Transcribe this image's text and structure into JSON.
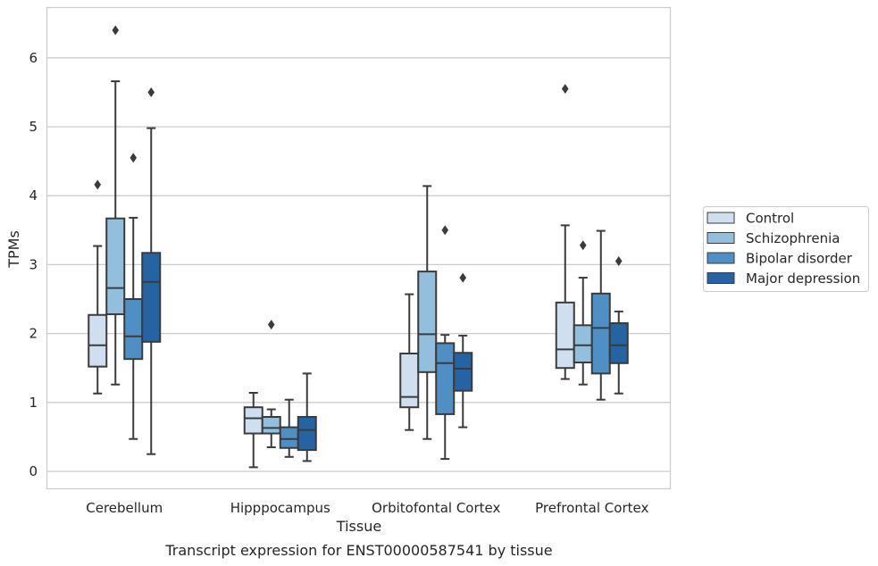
{
  "chart_data": {
    "type": "box",
    "title": "Transcript expression for ENST00000587541 by tissue",
    "xlabel": "Tissue",
    "ylabel": "TPMs",
    "ylim": [
      -0.25,
      6.75
    ],
    "yticks": [
      "0",
      "1",
      "2",
      "3",
      "4",
      "5",
      "6"
    ],
    "grid": true,
    "legend_position": "right",
    "categories": [
      "Cerebellum",
      "Hipppocampus",
      "Orbitofontal Cortex",
      "Prefrontal Cortex"
    ],
    "series": [
      {
        "name": "Control",
        "color": "#cfdff0",
        "boxes": [
          {
            "whisker_low": 1.13,
            "q1": 1.52,
            "median": 1.83,
            "q3": 2.27,
            "whisker_high": 3.27,
            "outliers": [
              4.16
            ]
          },
          {
            "whisker_low": 0.06,
            "q1": 0.55,
            "median": 0.77,
            "q3": 0.93,
            "whisker_high": 1.14,
            "outliers": []
          },
          {
            "whisker_low": 0.6,
            "q1": 0.93,
            "median": 1.08,
            "q3": 1.71,
            "whisker_high": 2.57,
            "outliers": []
          },
          {
            "whisker_low": 1.34,
            "q1": 1.5,
            "median": 1.77,
            "q3": 2.45,
            "whisker_high": 3.57,
            "outliers": [
              5.55
            ]
          }
        ]
      },
      {
        "name": "Schizophrenia",
        "color": "#93bfdc",
        "boxes": [
          {
            "whisker_low": 1.26,
            "q1": 2.28,
            "median": 2.66,
            "q3": 3.67,
            "whisker_high": 5.66,
            "outliers": [
              6.4
            ]
          },
          {
            "whisker_low": 0.35,
            "q1": 0.55,
            "median": 0.63,
            "q3": 0.79,
            "whisker_high": 0.9,
            "outliers": [
              2.13
            ]
          },
          {
            "whisker_low": 0.47,
            "q1": 1.44,
            "median": 1.99,
            "q3": 2.9,
            "whisker_high": 4.14,
            "outliers": []
          },
          {
            "whisker_low": 1.26,
            "q1": 1.58,
            "median": 1.83,
            "q3": 2.12,
            "whisker_high": 2.81,
            "outliers": [
              3.28
            ]
          }
        ]
      },
      {
        "name": "Bipolar disorder",
        "color": "#4f8fc3",
        "boxes": [
          {
            "whisker_low": 0.47,
            "q1": 1.63,
            "median": 1.96,
            "q3": 2.5,
            "whisker_high": 3.68,
            "outliers": [
              4.55
            ]
          },
          {
            "whisker_low": 0.21,
            "q1": 0.34,
            "median": 0.47,
            "q3": 0.64,
            "whisker_high": 1.04,
            "outliers": []
          },
          {
            "whisker_low": 0.18,
            "q1": 0.83,
            "median": 1.57,
            "q3": 1.86,
            "whisker_high": 1.98,
            "outliers": [
              3.5
            ]
          },
          {
            "whisker_low": 1.04,
            "q1": 1.42,
            "median": 2.08,
            "q3": 2.58,
            "whisker_high": 3.49,
            "outliers": []
          }
        ]
      },
      {
        "name": "Major depression",
        "color": "#2563a3",
        "boxes": [
          {
            "whisker_low": 0.25,
            "q1": 1.88,
            "median": 2.75,
            "q3": 3.17,
            "whisker_high": 4.98,
            "outliers": [
              5.5
            ]
          },
          {
            "whisker_low": 0.15,
            "q1": 0.31,
            "median": 0.6,
            "q3": 0.79,
            "whisker_high": 1.42,
            "outliers": []
          },
          {
            "whisker_low": 0.64,
            "q1": 1.17,
            "median": 1.49,
            "q3": 1.72,
            "whisker_high": 1.97,
            "outliers": [
              2.81
            ]
          },
          {
            "whisker_low": 1.13,
            "q1": 1.57,
            "median": 1.83,
            "q3": 2.15,
            "whisker_high": 2.32,
            "outliers": [
              3.05
            ]
          }
        ]
      }
    ]
  }
}
